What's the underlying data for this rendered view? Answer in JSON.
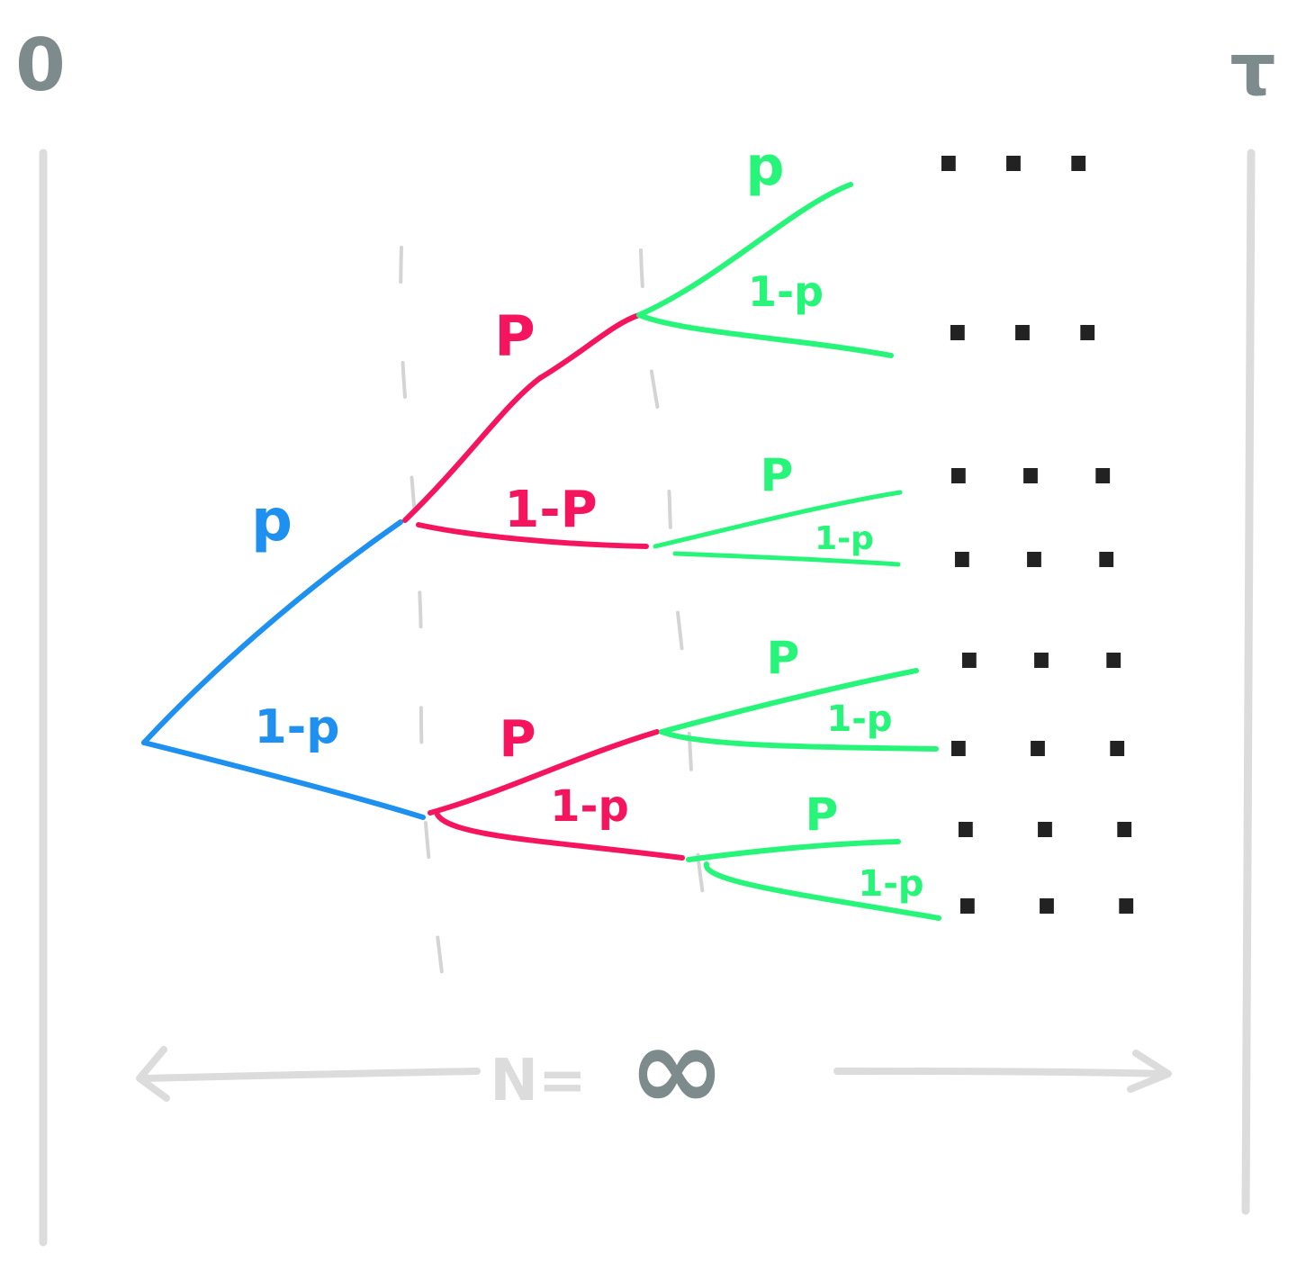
{
  "colors": {
    "level1": "#1e90ef",
    "level2": "#f5155e",
    "level3": "#27f57a",
    "boundary": "#dcdcdc",
    "guide": "#d4d4d4",
    "label_gray": "#7e8b8c",
    "dots": "#222222"
  },
  "labels": {
    "start": "0",
    "end": "τ",
    "n_prefix": "N=",
    "n_value": "∞"
  },
  "branch_labels": {
    "l1_up": "p",
    "l1_down": "1-p",
    "l2a_up": "P",
    "l2a_down": "1-P",
    "l2b_up": "P",
    "l2b_down": "1-p",
    "l3a_up": "p",
    "l3a_down": "1-p",
    "l3b_up": "P",
    "l3b_down": "1-p",
    "l3c_up": "P",
    "l3c_down": "1-p",
    "l3d_up": "P",
    "l3d_down": "1-p"
  },
  "continuation": "..."
}
